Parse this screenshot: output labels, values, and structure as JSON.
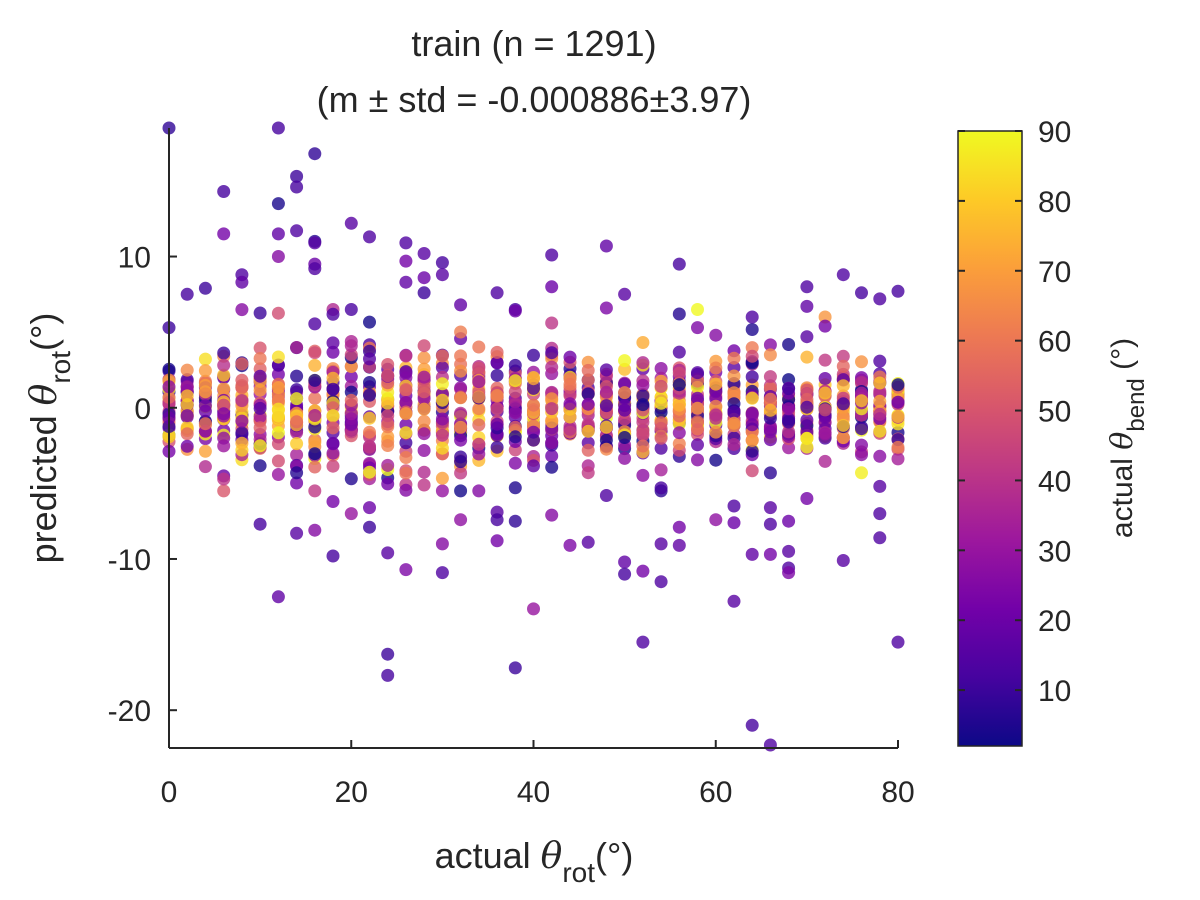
{
  "chart_data": {
    "type": "scatter",
    "title": "train (n = 1291)",
    "subtitle": "(m ± std = -0.000886±3.97)",
    "xlabel": {
      "prefix": "actual ",
      "symbol": "θ",
      "sub": "rot",
      "suffix": "(°)"
    },
    "ylabel": {
      "prefix": "predicted ",
      "symbol": "θ",
      "sub": "rot",
      "suffix": "(°)"
    },
    "colorbar_label": {
      "prefix": "actual ",
      "symbol": "θ",
      "sub": "bend",
      "suffix": " (°)"
    },
    "xlim": [
      0,
      80
    ],
    "ylim": [
      -22.5,
      18.5
    ],
    "xticks": [
      "0",
      "20",
      "40",
      "60",
      "80"
    ],
    "yticks": [
      "-20",
      "-10",
      "0",
      "10"
    ],
    "color_range": [
      2,
      90
    ],
    "color_ticks": [
      "10",
      "20",
      "30",
      "40",
      "50",
      "60",
      "70",
      "80",
      "90"
    ],
    "colormap": "plasma",
    "grid": false,
    "x_levels": [
      0,
      2,
      4,
      6,
      8,
      10,
      12,
      14,
      16,
      18,
      20,
      22,
      24,
      26,
      28,
      30,
      32,
      34,
      36,
      38,
      40,
      42,
      44,
      46,
      48,
      50,
      52,
      54,
      56,
      58,
      60,
      62,
      64,
      66,
      68,
      70,
      72,
      74,
      76,
      78,
      80
    ],
    "spread_by_x": [
      2.3,
      2.4,
      2.6,
      2.8,
      3.0,
      3.1,
      3.2,
      3.3,
      3.4,
      3.4,
      3.4,
      3.4,
      3.3,
      3.3,
      3.2,
      3.1,
      3.0,
      2.9,
      2.9,
      2.8,
      2.8,
      2.8,
      2.7,
      2.7,
      2.6,
      2.6,
      2.5,
      2.5,
      2.5,
      2.4,
      2.4,
      2.4,
      2.3,
      2.3,
      2.2,
      2.2,
      2.1,
      2.0,
      1.9,
      1.8,
      1.7
    ],
    "outliers": [
      [
        0,
        18.5,
        8
      ],
      [
        0,
        5.3,
        10
      ],
      [
        2,
        7.5,
        12
      ],
      [
        4,
        7.9,
        10
      ],
      [
        6,
        14.3,
        12
      ],
      [
        6,
        11.5,
        22
      ],
      [
        8,
        8.8,
        14
      ],
      [
        8,
        8.3,
        18
      ],
      [
        10,
        -7.7,
        12
      ],
      [
        12,
        18.5,
        12
      ],
      [
        12,
        13.5,
        4
      ],
      [
        12,
        11.5,
        18
      ],
      [
        12,
        10.0,
        26
      ],
      [
        12,
        -12.5,
        18
      ],
      [
        14,
        15.3,
        10
      ],
      [
        14,
        14.6,
        12
      ],
      [
        14,
        11.7,
        14
      ],
      [
        14,
        -4.3,
        6
      ],
      [
        14,
        -8.3,
        16
      ],
      [
        16,
        16.8,
        8
      ],
      [
        16,
        11.0,
        6
      ],
      [
        16,
        10.9,
        16
      ],
      [
        16,
        9.5,
        20
      ],
      [
        16,
        9.2,
        14
      ],
      [
        16,
        -8.1,
        26
      ],
      [
        18,
        -6.2,
        22
      ],
      [
        18,
        -9.8,
        12
      ],
      [
        20,
        12.2,
        16
      ],
      [
        20,
        -7.0,
        30
      ],
      [
        22,
        11.3,
        14
      ],
      [
        22,
        -6.6,
        20
      ],
      [
        22,
        -7.9,
        10
      ],
      [
        24,
        -9.6,
        16
      ],
      [
        24,
        -16.3,
        10
      ],
      [
        24,
        -17.7,
        12
      ],
      [
        26,
        10.9,
        14
      ],
      [
        26,
        9.7,
        22
      ],
      [
        26,
        8.3,
        18
      ],
      [
        26,
        -10.7,
        24
      ],
      [
        28,
        10.2,
        16
      ],
      [
        28,
        8.6,
        20
      ],
      [
        28,
        7.6,
        10
      ],
      [
        30,
        9.6,
        12
      ],
      [
        30,
        8.8,
        16
      ],
      [
        30,
        -9.0,
        26
      ],
      [
        30,
        -10.9,
        14
      ],
      [
        32,
        6.8,
        18
      ],
      [
        32,
        -7.4,
        28
      ],
      [
        36,
        7.6,
        14
      ],
      [
        36,
        -6.9,
        16
      ],
      [
        36,
        -7.4,
        12
      ],
      [
        36,
        -8.8,
        22
      ],
      [
        38,
        6.4,
        20
      ],
      [
        38,
        -7.5,
        8
      ],
      [
        38,
        -17.2,
        10
      ],
      [
        40,
        -13.3,
        30
      ],
      [
        42,
        10.1,
        14
      ],
      [
        42,
        8.0,
        20
      ],
      [
        42,
        -7.1,
        26
      ],
      [
        44,
        -9.1,
        24
      ],
      [
        46,
        -8.9,
        16
      ],
      [
        48,
        10.7,
        18
      ],
      [
        48,
        6.6,
        24
      ],
      [
        48,
        -5.8,
        14
      ],
      [
        50,
        7.5,
        16
      ],
      [
        50,
        -10.2,
        18
      ],
      [
        50,
        -11.0,
        12
      ],
      [
        52,
        -10.8,
        22
      ],
      [
        52,
        -15.5,
        14
      ],
      [
        54,
        -5.3,
        12
      ],
      [
        54,
        -9.0,
        16
      ],
      [
        54,
        -11.5,
        14
      ],
      [
        56,
        9.5,
        12
      ],
      [
        56,
        6.2,
        6
      ],
      [
        56,
        -7.9,
        22
      ],
      [
        56,
        -9.1,
        18
      ],
      [
        58,
        6.5,
        90
      ],
      [
        58,
        5.3,
        24
      ],
      [
        60,
        4.8,
        26
      ],
      [
        60,
        -7.4,
        28
      ],
      [
        62,
        -6.5,
        14
      ],
      [
        62,
        -7.6,
        20
      ],
      [
        62,
        -12.8,
        16
      ],
      [
        64,
        6.0,
        14
      ],
      [
        64,
        -9.7,
        18
      ],
      [
        64,
        -21.0,
        12
      ],
      [
        66,
        -6.6,
        16
      ],
      [
        66,
        -7.7,
        14
      ],
      [
        66,
        -9.7,
        22
      ],
      [
        66,
        -22.3,
        14
      ],
      [
        68,
        -7.5,
        20
      ],
      [
        68,
        -9.5,
        16
      ],
      [
        68,
        -10.6,
        14
      ],
      [
        68,
        -10.9,
        24
      ],
      [
        70,
        8.0,
        14
      ],
      [
        70,
        6.7,
        18
      ],
      [
        70,
        4.7,
        16
      ],
      [
        70,
        -6.0,
        22
      ],
      [
        72,
        6.0,
        68
      ],
      [
        72,
        5.4,
        22
      ],
      [
        74,
        8.8,
        14
      ],
      [
        74,
        -10.1,
        16
      ],
      [
        76,
        7.6,
        12
      ],
      [
        76,
        -4.3,
        88
      ],
      [
        78,
        7.2,
        14
      ],
      [
        78,
        -5.2,
        16
      ],
      [
        78,
        -7.0,
        14
      ],
      [
        78,
        -8.6,
        14
      ],
      [
        80,
        7.7,
        12
      ],
      [
        80,
        -15.5,
        14
      ]
    ]
  }
}
